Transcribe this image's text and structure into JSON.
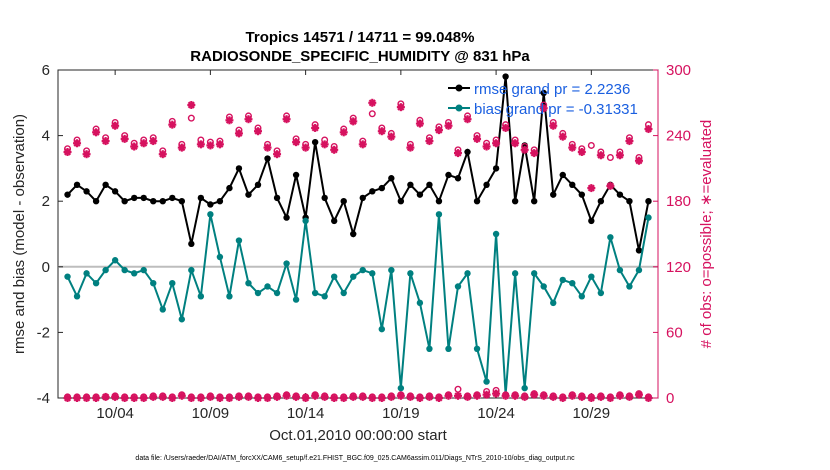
{
  "chart_data": {
    "type": "line",
    "title_line1": "Tropics 14571 / 14711 = 99.048%",
    "title_line2": "RADIOSONDE_SPECIFIC_HUMIDITY @ 831 hPa",
    "xlabel": "Oct.01,2010 00:00:00 start",
    "ylabel_left": "rmse and bias (model - observation)",
    "ylabel_right": "# of obs: o=possible; ∗=evaluated",
    "footnote": "data file: /Users/raeder/DAI/ATM_forcXX/CAM6_setup/f.e21.FHIST_BGC.f09_025.CAM6assim.011/Diags_NTrS_2010-10/obs_diag_output.nc",
    "xlim": [
      1,
      32.5
    ],
    "ylim_left": [
      -4,
      6
    ],
    "ylim_right": [
      0,
      300
    ],
    "x_ticks": [
      {
        "value": 4,
        "label": "10/04"
      },
      {
        "value": 9,
        "label": "10/09"
      },
      {
        "value": 14,
        "label": "10/14"
      },
      {
        "value": 19,
        "label": "10/19"
      },
      {
        "value": 24,
        "label": "10/24"
      },
      {
        "value": 29,
        "label": "10/29"
      }
    ],
    "y_ticks_left": [
      {
        "value": -4,
        "label": "-4"
      },
      {
        "value": -2,
        "label": "-2"
      },
      {
        "value": 0,
        "label": "0"
      },
      {
        "value": 2,
        "label": "2"
      },
      {
        "value": 4,
        "label": "4"
      },
      {
        "value": 6,
        "label": "6"
      }
    ],
    "y_ticks_right": [
      {
        "value": 0,
        "label": "0"
      },
      {
        "value": 60,
        "label": "60"
      },
      {
        "value": 120,
        "label": "120"
      },
      {
        "value": 180,
        "label": "180"
      },
      {
        "value": 240,
        "label": "240"
      },
      {
        "value": 300,
        "label": "300"
      }
    ],
    "zero_line": 0,
    "series": [
      {
        "name": "rmse grand pr = 2.2236",
        "color": "#000000",
        "axis": "left",
        "x": [
          1.5,
          2,
          2.5,
          3,
          3.5,
          4,
          4.5,
          5,
          5.5,
          6,
          6.5,
          7,
          7.5,
          8,
          8.5,
          9,
          9.5,
          10,
          10.5,
          11,
          11.5,
          12,
          12.5,
          13,
          13.5,
          14,
          14.5,
          15,
          15.5,
          16,
          16.5,
          17,
          17.5,
          18,
          18.5,
          19,
          19.5,
          20,
          20.5,
          21,
          21.5,
          22,
          22.5,
          23,
          23.5,
          24,
          24.5,
          25,
          25.5,
          26,
          26.5,
          27,
          27.5,
          28,
          28.5,
          29,
          29.5,
          30,
          30.5,
          31,
          31.5,
          32
        ],
        "y": [
          2.2,
          2.5,
          2.3,
          2.0,
          2.5,
          2.3,
          2.0,
          2.1,
          2.1,
          2.0,
          2.0,
          2.1,
          2.0,
          0.7,
          2.1,
          1.9,
          2.0,
          2.4,
          3.0,
          2.2,
          2.5,
          3.3,
          2.1,
          1.5,
          2.8,
          1.5,
          3.8,
          2.1,
          1.4,
          2.0,
          1.0,
          2.1,
          2.3,
          2.4,
          2.7,
          2.0,
          2.5,
          2.2,
          2.5,
          2.0,
          2.8,
          2.7,
          3.5,
          2.0,
          2.5,
          3.0,
          5.8,
          2.0,
          3.7,
          2.0,
          5.3,
          2.2,
          2.8,
          2.5,
          2.2,
          1.4,
          2.0,
          2.5,
          2.2,
          2.0,
          0.5,
          2.0
        ]
      },
      {
        "name": "bias grand pr = -0.31331",
        "color": "#008080",
        "axis": "left",
        "x": [
          1.5,
          2,
          2.5,
          3,
          3.5,
          4,
          4.5,
          5,
          5.5,
          6,
          6.5,
          7,
          7.5,
          8,
          8.5,
          9,
          9.5,
          10,
          10.5,
          11,
          11.5,
          12,
          12.5,
          13,
          13.5,
          14,
          14.5,
          15,
          15.5,
          16,
          16.5,
          17,
          17.5,
          18,
          18.5,
          19,
          19.5,
          20,
          20.5,
          21,
          21.5,
          22,
          22.5,
          23,
          23.5,
          24,
          24.5,
          25,
          25.5,
          26,
          26.5,
          27,
          27.5,
          28,
          28.5,
          29,
          29.5,
          30,
          30.5,
          31,
          31.5,
          32
        ],
        "y": [
          -0.3,
          -0.9,
          -0.2,
          -0.5,
          -0.1,
          0.2,
          -0.1,
          -0.2,
          -0.1,
          -0.5,
          -1.3,
          -0.5,
          -1.6,
          -0.1,
          -0.9,
          1.6,
          0.3,
          -0.9,
          0.8,
          -0.5,
          -0.8,
          -0.6,
          -0.8,
          0.1,
          -1.0,
          1.4,
          -0.8,
          -0.9,
          -0.3,
          -0.8,
          -0.3,
          -0.1,
          -0.2,
          -1.9,
          -0.1,
          -3.7,
          -0.2,
          -1.1,
          -2.5,
          1.6,
          -2.5,
          -0.6,
          -0.2,
          -2.5,
          -3.5,
          1.0,
          -3.9,
          -0.2,
          -3.7,
          -0.2,
          -0.6,
          -1.1,
          -0.4,
          -0.5,
          -0.9,
          -0.3,
          -0.8,
          0.9,
          -0.1,
          -0.6,
          -0.1,
          1.5
        ]
      },
      {
        "name": "possible obs (o)",
        "color": "#d6125f",
        "axis": "right",
        "marker": "circle",
        "x": [
          1.5,
          2,
          2.5,
          3,
          3.5,
          4,
          4.5,
          5,
          5.5,
          6,
          6.5,
          7,
          7.5,
          8,
          8.5,
          9,
          9.5,
          10,
          10.5,
          11,
          11.5,
          12,
          12.5,
          13,
          13.5,
          14,
          14.5,
          15,
          15.5,
          16,
          16.5,
          17,
          17.5,
          18,
          18.5,
          19,
          19.5,
          20,
          20.5,
          21,
          21.5,
          22,
          22.5,
          23,
          23.5,
          24,
          24.5,
          25,
          25.5,
          26,
          26.5,
          27,
          27.5,
          28,
          28.5,
          29,
          29.5,
          30,
          30.5,
          31,
          31.5,
          32
        ],
        "y": [
          228,
          236,
          226,
          246,
          238,
          252,
          240,
          233,
          236,
          238,
          226,
          253,
          232,
          256,
          236,
          234,
          235,
          257,
          245,
          258,
          247,
          232,
          226,
          258,
          237,
          232,
          250,
          236,
          230,
          246,
          256,
          235,
          260,
          247,
          242,
          269,
          232,
          254,
          238,
          248,
          252,
          227,
          258,
          240,
          233,
          236,
          250,
          236,
          230,
          227,
          268,
          252,
          242,
          232,
          228,
          231,
          225,
          220,
          225,
          238,
          220,
          250
        ]
      },
      {
        "name": "evaluated obs (∗)",
        "color": "#d6125f",
        "axis": "right",
        "marker": "asterisk",
        "x": [
          1.5,
          2,
          2.5,
          3,
          3.5,
          4,
          4.5,
          5,
          5.5,
          6,
          6.5,
          7,
          7.5,
          8,
          8.5,
          9,
          9.5,
          10,
          10.5,
          11,
          11.5,
          12,
          12.5,
          13,
          13.5,
          14,
          14.5,
          15,
          15.5,
          16,
          16.5,
          17,
          17.5,
          18,
          18.5,
          19,
          19.5,
          20,
          20.5,
          21,
          21.5,
          22,
          22.5,
          23,
          23.5,
          24,
          24.5,
          25,
          25.5,
          26,
          26.5,
          27,
          27.5,
          28,
          28.5,
          29,
          29.5,
          30,
          30.5,
          31,
          31.5,
          32
        ],
        "y": [
          225,
          233,
          223,
          243,
          235,
          249,
          237,
          230,
          233,
          235,
          223,
          250,
          229,
          268,
          232,
          231,
          232,
          254,
          242,
          255,
          244,
          229,
          223,
          255,
          234,
          229,
          247,
          232,
          227,
          243,
          253,
          232,
          270,
          244,
          239,
          266,
          229,
          251,
          235,
          245,
          249,
          224,
          255,
          237,
          230,
          233,
          247,
          233,
          227,
          224,
          265,
          249,
          239,
          229,
          225,
          192,
          222,
          194,
          222,
          235,
          217,
          246
        ]
      },
      {
        "name": "possible obs lower (o)",
        "color": "#d6125f",
        "axis": "right",
        "marker": "circle",
        "x": [
          1.5,
          2,
          2.5,
          3,
          3.5,
          4,
          4.5,
          5,
          5.5,
          6,
          6.5,
          7,
          7.5,
          8,
          8.5,
          9,
          9.5,
          10,
          10.5,
          11,
          11.5,
          12,
          12.5,
          13,
          13.5,
          14,
          14.5,
          15,
          15.5,
          16,
          16.5,
          17,
          17.5,
          18,
          18.5,
          19,
          19.5,
          20,
          20.5,
          21,
          21.5,
          22,
          22.5,
          23,
          23.5,
          24,
          24.5,
          25,
          25.5,
          26,
          26.5,
          27,
          27.5,
          28,
          28.5,
          29,
          29.5,
          30,
          30.5,
          31,
          31.5,
          32
        ],
        "y": [
          1,
          1,
          1,
          1,
          1,
          2,
          1,
          1,
          1,
          2,
          2,
          1,
          3,
          1,
          1,
          2,
          1,
          1,
          2,
          2,
          1,
          1,
          2,
          3,
          2,
          1,
          3,
          2,
          1,
          1,
          2,
          2,
          1,
          1,
          2,
          3,
          2,
          1,
          2,
          1,
          3,
          8,
          2,
          3,
          6,
          7,
          3,
          3,
          2,
          4,
          3,
          2,
          1,
          3,
          2,
          1,
          2,
          1,
          3,
          2,
          4,
          1
        ]
      },
      {
        "name": "evaluated obs lower (∗)",
        "color": "#d6125f",
        "axis": "right",
        "marker": "asterisk",
        "x": [
          1.5,
          2,
          2.5,
          3,
          3.5,
          4,
          4.5,
          5,
          5.5,
          6,
          6.5,
          7,
          7.5,
          8,
          8.5,
          9,
          9.5,
          10,
          10.5,
          11,
          11.5,
          12,
          12.5,
          13,
          13.5,
          14,
          14.5,
          15,
          15.5,
          16,
          16.5,
          17,
          17.5,
          18,
          18.5,
          19,
          19.5,
          20,
          20.5,
          21,
          21.5,
          22,
          22.5,
          23,
          23.5,
          24,
          24.5,
          25,
          25.5,
          26,
          26.5,
          27,
          27.5,
          28,
          28.5,
          29,
          29.5,
          30,
          30.5,
          31,
          31.5,
          32
        ],
        "y": [
          0,
          0,
          0,
          0,
          1,
          1,
          0,
          0,
          0,
          1,
          1,
          0,
          2,
          0,
          0,
          1,
          0,
          0,
          1,
          1,
          0,
          0,
          1,
          2,
          1,
          0,
          2,
          1,
          0,
          0,
          1,
          1,
          0,
          0,
          1,
          2,
          1,
          0,
          1,
          0,
          2,
          2,
          1,
          2,
          3,
          4,
          2,
          2,
          1,
          3,
          2,
          1,
          0,
          2,
          1,
          0,
          1,
          0,
          2,
          1,
          3,
          0
        ]
      }
    ]
  }
}
